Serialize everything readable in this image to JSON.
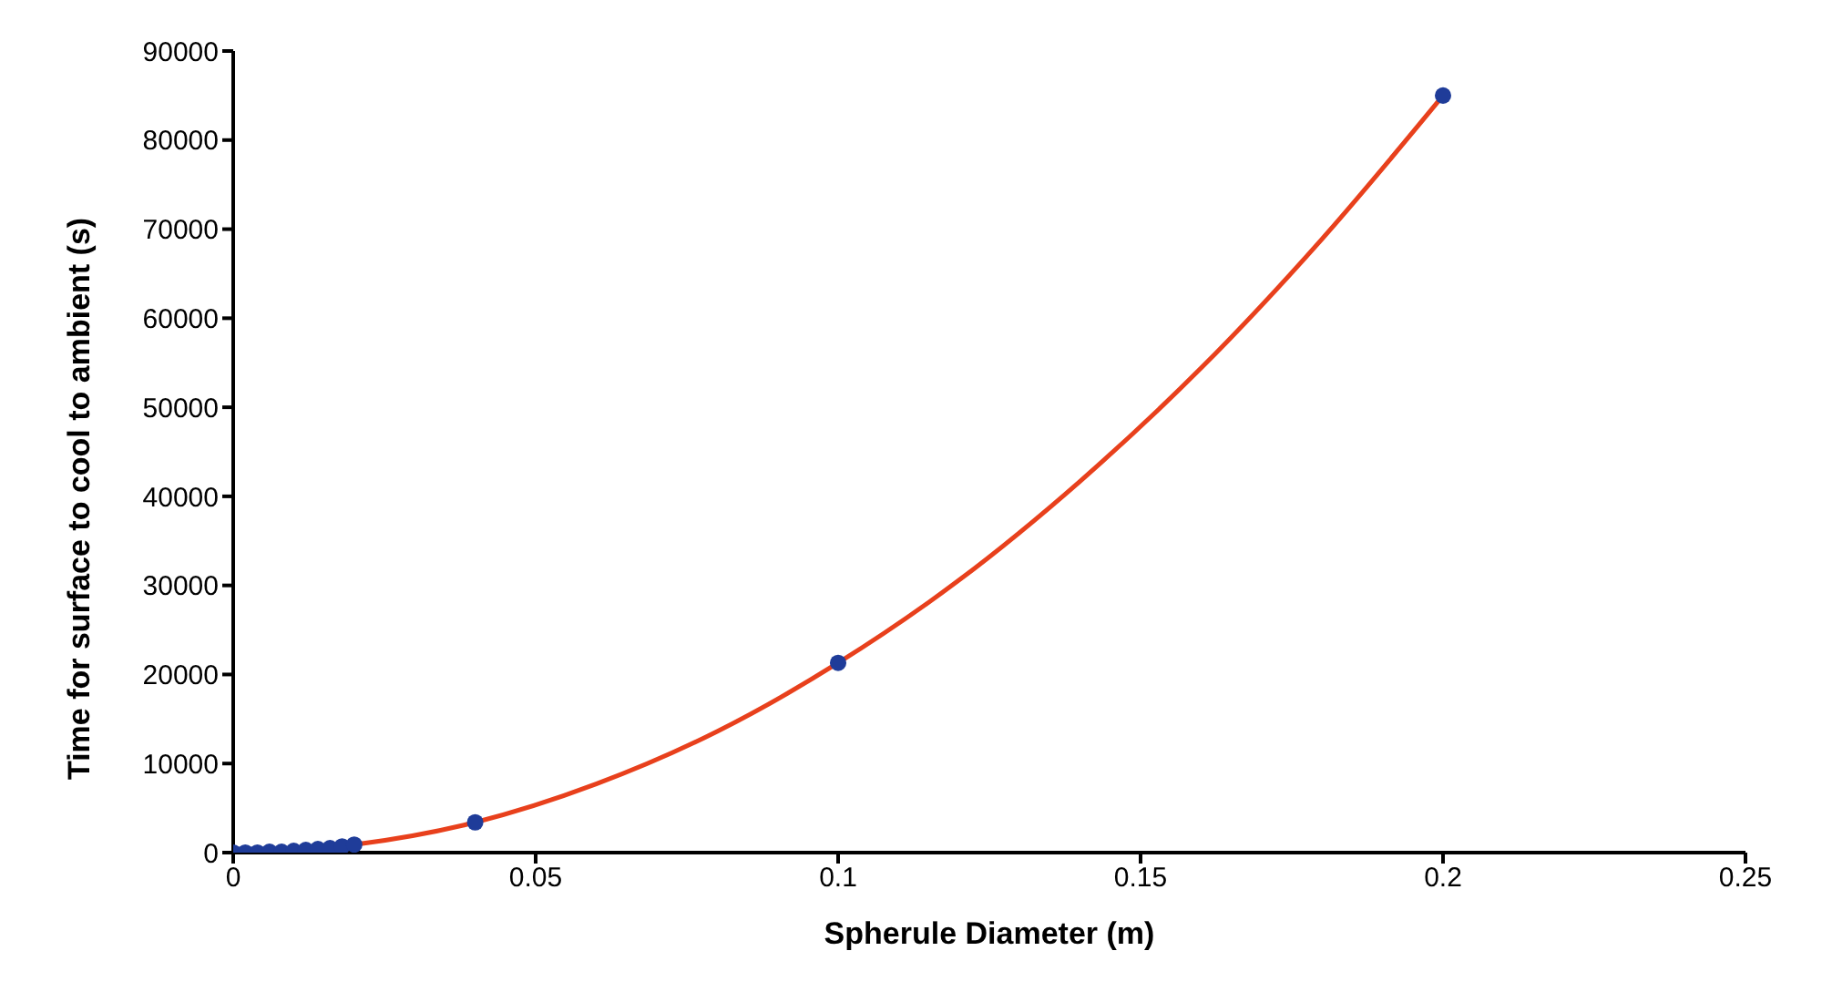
{
  "chart_data": {
    "type": "scatter",
    "xlabel": "Spherule Diameter (m)",
    "ylabel": "Time for surface to cool to ambient (s)",
    "xlim": [
      0,
      0.25
    ],
    "xticks": [
      0,
      0.05,
      0.1,
      0.15,
      0.2,
      0.25
    ],
    "ylim": [
      0,
      90000
    ],
    "yticks": [
      0,
      10000,
      20000,
      30000,
      40000,
      50000,
      60000,
      70000,
      80000,
      90000
    ],
    "grid": false,
    "legend": false,
    "marker": "circle",
    "series": [
      {
        "color": "#1f3c99",
        "x": [
          0,
          0.002,
          0.004,
          0.006,
          0.008,
          0.01,
          0.012,
          0.014,
          0.016,
          0.018,
          0.02,
          0.04,
          0.1,
          0.2
        ],
        "values": [
          0,
          0,
          0,
          100,
          100,
          200,
          300,
          400,
          500,
          700,
          900,
          3400,
          21300,
          85000
        ]
      },
      {
        "type": "line",
        "color": "#e8401c",
        "marker": "none",
        "line_style": "solid",
        "x": [
          0,
          0.02,
          0.04,
          0.06,
          0.08,
          0.1,
          0.12,
          0.14,
          0.16,
          0.18,
          0.2
        ],
        "values": [
          0,
          900,
          3400,
          7700,
          13600,
          21300,
          30600,
          41700,
          54400,
          68900,
          85000
        ]
      }
    ]
  }
}
